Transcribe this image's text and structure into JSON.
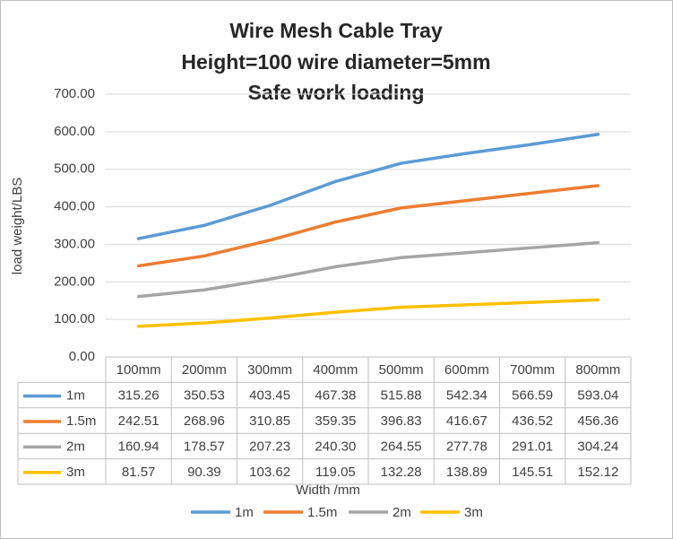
{
  "chart_data": {
    "type": "line",
    "title_lines": [
      "Wire Mesh Cable Tray",
      "Height=100  wire diameter=5mm",
      "Safe work loading"
    ],
    "y_label": "load weight/LBS",
    "x_label": "Width /mm",
    "categories": [
      "100mm",
      "200mm",
      "300mm",
      "400mm",
      "500mm",
      "600mm",
      "700mm",
      "800mm"
    ],
    "series": [
      {
        "name": "1m",
        "color": "#5b9bd5",
        "values": [
          315.26,
          350.53,
          403.45,
          467.38,
          515.88,
          542.34,
          566.59,
          593.04
        ],
        "value_labels": [
          "315.26",
          "350.53",
          "403.45",
          "467.38",
          "515.88",
          "542.34",
          "566.59",
          "593.04"
        ]
      },
      {
        "name": "1.5m",
        "color": "#ed7d31",
        "values": [
          242.51,
          268.96,
          310.85,
          359.35,
          396.83,
          416.67,
          436.52,
          456.36
        ],
        "value_labels": [
          "242.51",
          "268.96",
          "310.85",
          "359.35",
          "396.83",
          "416.67",
          "436.52",
          "456.36"
        ]
      },
      {
        "name": "2m",
        "color": "#a5a5a5",
        "values": [
          160.94,
          178.57,
          207.23,
          240.3,
          264.55,
          277.78,
          291.01,
          304.24
        ],
        "value_labels": [
          "160.94",
          "178.57",
          "207.23",
          "240.30",
          "264.55",
          "277.78",
          "291.01",
          "304.24"
        ]
      },
      {
        "name": "3m",
        "color": "#ffc000",
        "values": [
          81.57,
          90.39,
          103.62,
          119.05,
          132.28,
          138.89,
          145.51,
          152.12
        ],
        "value_labels": [
          "81.57",
          "90.39",
          "103.62",
          "119.05",
          "132.28",
          "138.89",
          "145.51",
          "152.12"
        ]
      }
    ],
    "ylim": [
      0,
      700
    ],
    "yticks": [
      {
        "value": 0,
        "label": "0.00"
      },
      {
        "value": 100,
        "label": "100.00"
      },
      {
        "value": 200,
        "label": "200.00"
      },
      {
        "value": 300,
        "label": "300.00"
      },
      {
        "value": 400,
        "label": "400.00"
      },
      {
        "value": 500,
        "label": "500.00"
      },
      {
        "value": 600,
        "label": "600.00"
      },
      {
        "value": 700,
        "label": "700.00"
      }
    ],
    "grid": true
  }
}
